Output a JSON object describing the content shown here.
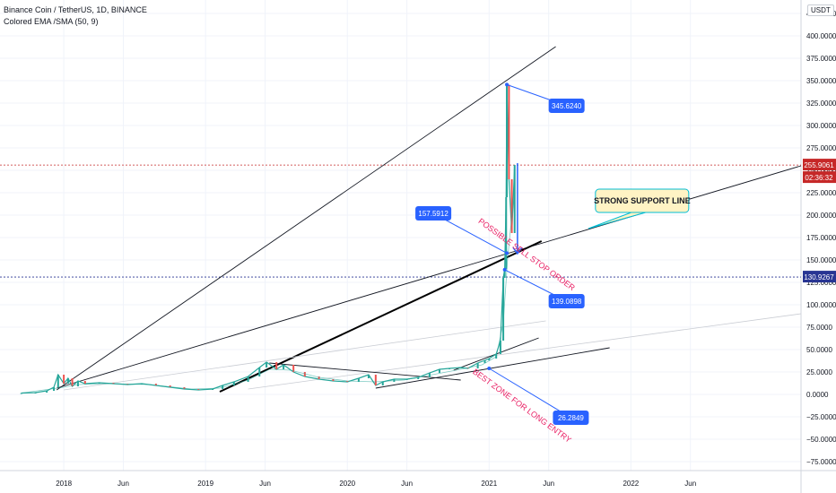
{
  "header": {
    "symbol_line": "Binance Coin / TetherUS, 1D, BINANCE",
    "indicator_line": "Colored EMA /SMA (50, 9)",
    "currency": "USDT"
  },
  "colors": {
    "candle_up": "#26a69a",
    "candle_down": "#ef5350",
    "callout_blue": "#2962ff",
    "annotation_red": "#e91e63",
    "support_box_fill": "#fff3c4",
    "support_box_border": "#00bcd4",
    "price_red": "#c62828",
    "price_navy": "#283593"
  },
  "chart_data": {
    "type": "candlestick",
    "title": "Binance Coin / TetherUS, 1D, BINANCE",
    "indicator": "Colored EMA /SMA (50, 9)",
    "y_axis": {
      "position": "right",
      "ylim": [
        -85,
        440
      ],
      "ticks": [
        -75,
        -50,
        -25,
        0,
        25,
        50,
        75,
        100,
        125,
        150,
        175,
        200,
        225,
        250,
        275,
        300,
        325,
        350,
        375,
        400,
        425
      ],
      "tick_labels": [
        "−75.0000",
        "−50.0000",
        "−25.0000",
        "0.0000",
        "25.0000",
        "50.0000",
        "75.0000",
        "100.0000",
        "125.0000",
        "150.0000",
        "175.0000",
        "200.0000",
        "225.0000",
        "250.0000",
        "275.0000",
        "300.0000",
        "325.0000",
        "350.0000",
        "375.0000",
        "400.0000",
        "425.0000"
      ]
    },
    "x_axis": {
      "xlim": [
        2017.55,
        2023.2
      ],
      "ticks": [
        {
          "x": 2018.0,
          "label": "2018"
        },
        {
          "x": 2018.42,
          "label": "Jun"
        },
        {
          "x": 2019.0,
          "label": "2019"
        },
        {
          "x": 2019.42,
          "label": "Jun"
        },
        {
          "x": 2020.0,
          "label": "2020"
        },
        {
          "x": 2020.42,
          "label": "Jun"
        },
        {
          "x": 2021.0,
          "label": "2021"
        },
        {
          "x": 2021.42,
          "label": "Jun"
        },
        {
          "x": 2022.0,
          "label": "2022"
        },
        {
          "x": 2022.42,
          "label": "Jun"
        }
      ]
    },
    "price_series": [
      [
        2017.7,
        1.5
      ],
      [
        2017.8,
        2
      ],
      [
        2017.88,
        4
      ],
      [
        2017.93,
        8
      ],
      [
        2017.96,
        22
      ],
      [
        2018.0,
        12
      ],
      [
        2018.03,
        18
      ],
      [
        2018.06,
        9
      ],
      [
        2018.1,
        15
      ],
      [
        2018.15,
        12
      ],
      [
        2018.25,
        13
      ],
      [
        2018.35,
        12
      ],
      [
        2018.45,
        11
      ],
      [
        2018.55,
        12
      ],
      [
        2018.65,
        10
      ],
      [
        2018.75,
        8
      ],
      [
        2018.85,
        6
      ],
      [
        2018.95,
        5
      ],
      [
        2019.05,
        6
      ],
      [
        2019.12,
        10
      ],
      [
        2019.2,
        14
      ],
      [
        2019.3,
        20
      ],
      [
        2019.38,
        30
      ],
      [
        2019.43,
        36
      ],
      [
        2019.5,
        28
      ],
      [
        2019.55,
        33
      ],
      [
        2019.62,
        25
      ],
      [
        2019.7,
        20
      ],
      [
        2019.8,
        17
      ],
      [
        2019.9,
        15
      ],
      [
        2020.0,
        14
      ],
      [
        2020.08,
        18
      ],
      [
        2020.15,
        22
      ],
      [
        2020.2,
        10
      ],
      [
        2020.25,
        14
      ],
      [
        2020.33,
        17
      ],
      [
        2020.42,
        17
      ],
      [
        2020.5,
        19
      ],
      [
        2020.58,
        24
      ],
      [
        2020.65,
        28
      ],
      [
        2020.72,
        29
      ],
      [
        2020.8,
        30
      ],
      [
        2020.85,
        29
      ],
      [
        2020.92,
        35
      ],
      [
        2020.97,
        38
      ],
      [
        2021.0,
        40
      ],
      [
        2021.05,
        45
      ],
      [
        2021.08,
        60
      ],
      [
        2021.1,
        130
      ],
      [
        2021.11,
        140
      ],
      [
        2021.12,
        220
      ],
      [
        2021.125,
        345.6
      ],
      [
        2021.14,
        240
      ],
      [
        2021.16,
        180
      ],
      [
        2021.18,
        255.9
      ]
    ],
    "ema_series": [
      [
        2017.7,
        1.5
      ],
      [
        2018.0,
        8
      ],
      [
        2018.1,
        11
      ],
      [
        2018.3,
        12
      ],
      [
        2018.6,
        11
      ],
      [
        2018.9,
        6
      ],
      [
        2019.1,
        7
      ],
      [
        2019.3,
        16
      ],
      [
        2019.45,
        28
      ],
      [
        2019.6,
        27
      ],
      [
        2019.8,
        19
      ],
      [
        2020.0,
        15
      ],
      [
        2020.2,
        14
      ],
      [
        2020.4,
        16
      ],
      [
        2020.6,
        22
      ],
      [
        2020.8,
        28
      ],
      [
        2020.95,
        33
      ],
      [
        2021.05,
        42
      ],
      [
        2021.1,
        80
      ],
      [
        2021.13,
        150
      ],
      [
        2021.16,
        200
      ],
      [
        2021.18,
        220
      ]
    ],
    "trend_lines": [
      {
        "name": "upper-channel-line",
        "from": [
          2017.95,
          5
        ],
        "to": [
          2021.47,
          388
        ],
        "style": "thin"
      },
      {
        "name": "strong-support-line",
        "from": [
          2017.95,
          7
        ],
        "to": [
          2023.2,
          255
        ],
        "style": "thin"
      },
      {
        "name": "bold-trend-line",
        "from": [
          2019.1,
          3
        ],
        "to": [
          2021.37,
          171
        ],
        "style": "bold"
      },
      {
        "name": "faint-trend-line-1",
        "from": [
          2018.0,
          5
        ],
        "to": [
          2021.4,
          82
        ],
        "style": "faint"
      },
      {
        "name": "faint-trend-line-2",
        "from": [
          2019.3,
          6
        ],
        "to": [
          2023.2,
          90
        ],
        "style": "faint"
      },
      {
        "name": "descending-resistance-line",
        "from": [
          2019.45,
          35
        ],
        "to": [
          2020.8,
          16
        ],
        "style": "thin"
      },
      {
        "name": "flag-upper-line",
        "from": [
          2020.75,
          27
        ],
        "to": [
          2021.35,
          63
        ],
        "style": "thin"
      },
      {
        "name": "flag-lower-line",
        "from": [
          2020.2,
          7
        ],
        "to": [
          2021.85,
          52
        ],
        "style": "thin"
      }
    ],
    "vertical_arrow": {
      "x": 2021.2,
      "from": 258,
      "to": 157
    },
    "annotations": [
      {
        "kind": "callout",
        "label": "345.6240",
        "box": [
          2021.42,
          330
        ],
        "point": [
          2021.125,
          345.6
        ]
      },
      {
        "kind": "callout",
        "label": "157.5912",
        "box": [
          2020.48,
          210
        ],
        "point": [
          2021.125,
          157.6
        ]
      },
      {
        "kind": "callout",
        "label": "139.0898",
        "box": [
          2021.42,
          112
        ],
        "point": [
          2021.11,
          139.1
        ]
      },
      {
        "kind": "callout",
        "label": "26.2849",
        "box": [
          2021.45,
          -18
        ],
        "point": [
          2021.0,
          29
        ]
      },
      {
        "kind": "rotated-text",
        "label": "POSSIBLE SELL STOP ORDER",
        "at": [
          2020.92,
          192
        ],
        "angle": 36
      },
      {
        "kind": "rotated-text",
        "label": "BEST ZONE FOR LONG ENTRY",
        "at": [
          2020.88,
          24
        ],
        "angle": 36
      },
      {
        "kind": "label-box",
        "label": "STRONG SUPPORT LINE",
        "box": [
          2021.75,
          229
        ],
        "point": [
          2021.7,
          185
        ]
      }
    ],
    "price_lines": [
      {
        "value": 255.9061,
        "label": "255.9061",
        "timer": "02:36:32",
        "color": "red"
      },
      {
        "value": 130.9267,
        "label": "130.9267",
        "color": "navy"
      }
    ]
  }
}
